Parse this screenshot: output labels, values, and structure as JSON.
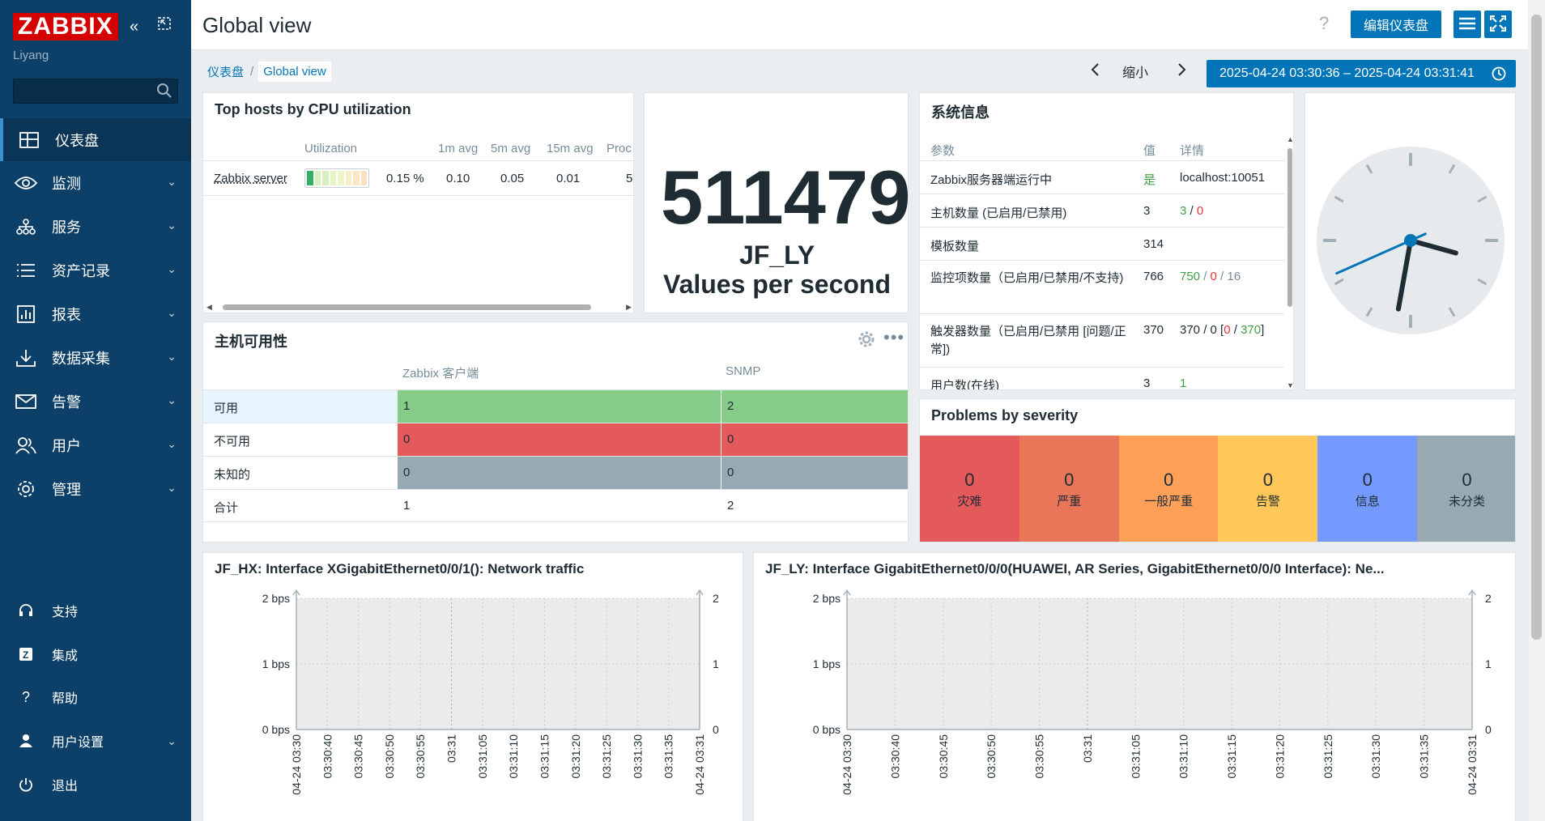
{
  "app": {
    "logo": "ZABBIX",
    "user": "Liyang",
    "search_placeholder": ""
  },
  "menu": [
    {
      "label": "仪表盘",
      "icon": "dashboard-icon"
    },
    {
      "label": "监测",
      "icon": "eye-icon"
    },
    {
      "label": "服务",
      "icon": "services-icon"
    },
    {
      "label": "资产记录",
      "icon": "list-icon"
    },
    {
      "label": "报表",
      "icon": "report-icon"
    },
    {
      "label": "数据采集",
      "icon": "download-icon"
    },
    {
      "label": "告警",
      "icon": "mail-icon"
    },
    {
      "label": "用户",
      "icon": "users-icon"
    },
    {
      "label": "管理",
      "icon": "gear-icon"
    }
  ],
  "bottom_menu": [
    {
      "label": "支持",
      "icon": "headset-icon"
    },
    {
      "label": "集成",
      "icon": "integration-icon"
    },
    {
      "label": "帮助",
      "icon": "help-icon"
    },
    {
      "label": "用户设置",
      "icon": "user-icon"
    },
    {
      "label": "退出",
      "icon": "power-icon"
    }
  ],
  "header": {
    "title": "Global view",
    "help": "?",
    "edit_button": "编辑仪表盘"
  },
  "breadcrumb": {
    "root": "仪表盘",
    "sep": "/",
    "current": "Global view"
  },
  "timecontrol": {
    "zoom_out": "缩小",
    "range": "2025-04-24 03:30:36 – 2025-04-24 03:31:41"
  },
  "top_hosts": {
    "title": "Top hosts by CPU utilization",
    "columns": [
      "Utilization",
      "1m avg",
      "5m avg",
      "15m avg",
      "Proc"
    ],
    "rows": [
      {
        "host": "Zabbix server",
        "util": "0.15 %",
        "avg1": "0.10",
        "avg5": "0.05",
        "avg15": "0.01",
        "proc": "5"
      }
    ],
    "util_fraction": 0.0015
  },
  "big_value": {
    "value": "511479",
    "host": "JF_LY",
    "label": "Values per second"
  },
  "sysinfo": {
    "title": "系统信息",
    "columns": [
      "参数",
      "值",
      "详情"
    ],
    "rows": [
      {
        "param": "Zabbix服务器端运行中",
        "value": "是",
        "details": "localhost:10051"
      },
      {
        "param": "主机数量 (已启用/已禁用)",
        "value": "3",
        "d1": "3",
        "d2": "0"
      },
      {
        "param": "模板数量",
        "value": "314",
        "details": ""
      },
      {
        "param": "监控项数量（已启用/已禁用/不支持)",
        "value": "766",
        "d1": "750",
        "d2": "0",
        "d3": "16"
      },
      {
        "param": "触发器数量（已启用/已禁用 [问题/正常])",
        "value": "370",
        "d1": "370",
        "d2": "0",
        "d3": "0",
        "d4": "370"
      },
      {
        "param": "用户数(在线)",
        "value": "3",
        "d1": "1"
      }
    ]
  },
  "clock": {
    "hour": 3,
    "minute": 31,
    "second": 41
  },
  "availability": {
    "title": "主机可用性",
    "columns": [
      "Zabbix 客户端",
      "SNMP"
    ],
    "rows": [
      {
        "label": "可用",
        "agent": "1",
        "snmp": "2"
      },
      {
        "label": "不可用",
        "agent": "0",
        "snmp": "0"
      },
      {
        "label": "未知的",
        "agent": "0",
        "snmp": "0"
      },
      {
        "label": "合计",
        "agent": "1",
        "snmp": "2"
      }
    ]
  },
  "problems": {
    "title": "Problems by severity",
    "items": [
      {
        "count": "0",
        "label": "灾难",
        "color": "#e45959"
      },
      {
        "count": "0",
        "label": "严重",
        "color": "#e97659"
      },
      {
        "count": "0",
        "label": "一般严重",
        "color": "#ffa059"
      },
      {
        "count": "0",
        "label": "告警",
        "color": "#ffc859"
      },
      {
        "count": "0",
        "label": "信息",
        "color": "#7499ff"
      },
      {
        "count": "0",
        "label": "未分类",
        "color": "#97aab3"
      }
    ]
  },
  "graph1": {
    "title": "JF_HX: Interface XGigabitEthernet0/0/1(): Network traffic"
  },
  "graph2": {
    "title": "JF_LY: Interface GigabitEthernet0/0/0(HUAWEI, AR Series, GigabitEthernet0/0/0 Interface): Ne..."
  },
  "chart_data": [
    {
      "type": "line",
      "title": "JF_HX: Interface XGigabitEthernet0/0/1(): Network traffic",
      "y_ticks": [
        "0 bps",
        "1 bps",
        "2 bps"
      ],
      "y2_ticks": [
        "0",
        "1",
        "2"
      ],
      "ylim": [
        0,
        2
      ],
      "x_ticks": [
        "04-24 03:30",
        "03:30:40",
        "03:30:45",
        "03:30:50",
        "03:30:55",
        "03:31",
        "03:31:05",
        "03:31:10",
        "03:31:15",
        "03:31:20",
        "03:31:25",
        "03:31:30",
        "03:31:35",
        "04-24 03:31"
      ],
      "series": []
    },
    {
      "type": "line",
      "title": "JF_LY: Interface GigabitEthernet0/0/0(HUAWEI, AR Series, GigabitEthernet0/0/0 Interface): Ne...",
      "y_ticks": [
        "0 bps",
        "1 bps",
        "2 bps"
      ],
      "y2_ticks": [
        "0",
        "1",
        "2"
      ],
      "ylim": [
        0,
        2
      ],
      "x_ticks": [
        "04-24 03:30",
        "03:30:40",
        "03:30:45",
        "03:30:50",
        "03:30:55",
        "03:31",
        "03:31:05",
        "03:31:10",
        "03:31:15",
        "03:31:20",
        "03:31:25",
        "03:31:30",
        "03:31:35",
        "04-24 03:31"
      ],
      "series": []
    }
  ]
}
